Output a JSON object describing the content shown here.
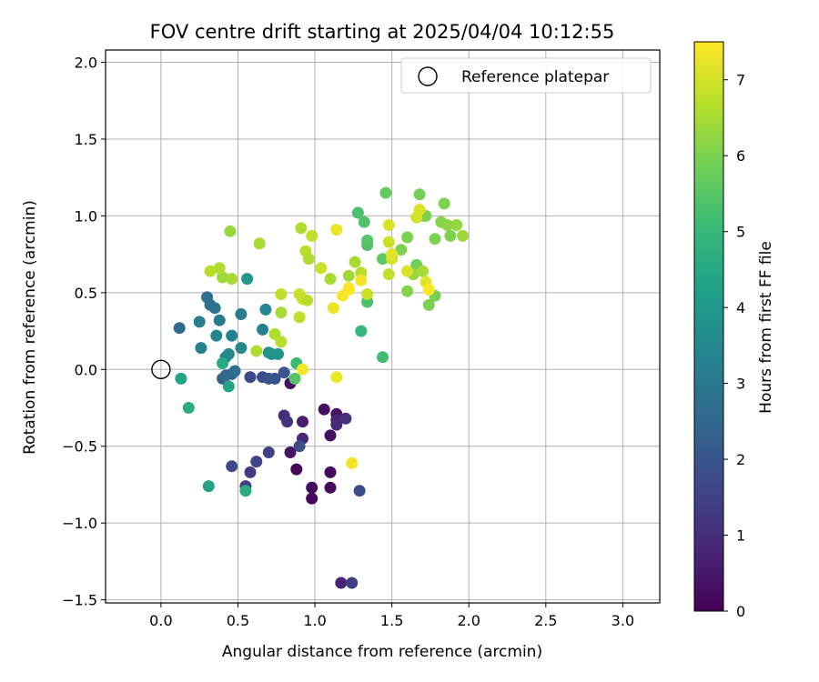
{
  "chart_data": {
    "type": "scatter",
    "title": "FOV centre drift starting at 2025/04/04 10:12:55",
    "xlabel": "Angular distance from reference (arcmin)",
    "ylabel": "Rotation from reference (arcmin)",
    "xlim": [
      -0.36,
      3.24
    ],
    "ylim": [
      -1.52,
      2.08
    ],
    "xticks": [
      "0.0",
      "0.5",
      "1.0",
      "1.5",
      "2.0",
      "2.5",
      "3.0"
    ],
    "xtick_values": [
      0,
      0.5,
      1.0,
      1.5,
      2.0,
      2.5,
      3.0
    ],
    "yticks": [
      "−1.5",
      "−1.0",
      "−0.5",
      "0.0",
      "0.5",
      "1.0",
      "1.5",
      "2.0"
    ],
    "ytick_values": [
      -1.5,
      -1.0,
      -0.5,
      0,
      0.5,
      1.0,
      1.5,
      2.0
    ],
    "grid": true,
    "legend": {
      "position": "top-right",
      "entries": [
        "Reference platepar"
      ]
    },
    "reference_point": {
      "x": 0.0,
      "y": 0.0,
      "style": "hollow-circle"
    },
    "colorbar": {
      "label": "Hours from first FF file",
      "colormap": "viridis",
      "range": [
        0,
        7.5
      ],
      "ticks": [
        "0",
        "1",
        "2",
        "3",
        "4",
        "5",
        "6",
        "7"
      ],
      "tick_values": [
        0,
        1,
        2,
        3,
        4,
        5,
        6,
        7
      ],
      "stops": [
        "#440154",
        "#482878",
        "#3e4989",
        "#31688e",
        "#26828e",
        "#1f9e89",
        "#35b779",
        "#6ece58",
        "#b5de2b",
        "#fde725"
      ]
    },
    "points": [
      [
        0.88,
        -0.65,
        0.1
      ],
      [
        0.98,
        -0.84,
        0.1
      ],
      [
        0.98,
        -0.77,
        0.2
      ],
      [
        1.1,
        -0.77,
        0.2
      ],
      [
        1.1,
        -0.67,
        0.2
      ],
      [
        1.1,
        -0.43,
        0.3
      ],
      [
        1.06,
        -0.26,
        0.3
      ],
      [
        1.14,
        -0.29,
        0.4
      ],
      [
        0.84,
        -0.09,
        0.3
      ],
      [
        0.84,
        -0.54,
        0.4
      ],
      [
        0.92,
        -0.34,
        0.6
      ],
      [
        0.92,
        -0.45,
        0.8
      ],
      [
        1.14,
        -0.33,
        0.8
      ],
      [
        1.14,
        -0.36,
        0.9
      ],
      [
        1.2,
        -0.32,
        1.0
      ],
      [
        1.17,
        -1.39,
        0.8
      ],
      [
        1.24,
        -1.39,
        1.4
      ],
      [
        0.8,
        -0.3,
        1.0
      ],
      [
        0.82,
        -0.34,
        1.1
      ],
      [
        0.58,
        -0.67,
        1.3
      ],
      [
        0.55,
        -0.76,
        1.4
      ],
      [
        0.7,
        -0.54,
        1.5
      ],
      [
        0.62,
        -0.6,
        1.6
      ],
      [
        0.46,
        -0.63,
        1.7
      ],
      [
        0.9,
        -0.5,
        1.8
      ],
      [
        1.29,
        -0.79,
        1.8
      ],
      [
        0.58,
        -0.05,
        1.7
      ],
      [
        0.66,
        -0.05,
        1.8
      ],
      [
        0.7,
        -0.06,
        1.9
      ],
      [
        0.74,
        -0.06,
        1.9
      ],
      [
        0.8,
        -0.02,
        2.0
      ],
      [
        0.4,
        -0.06,
        2.2
      ],
      [
        0.46,
        -0.03,
        2.4
      ],
      [
        0.42,
        -0.04,
        2.6
      ],
      [
        0.48,
        -0.01,
        2.7
      ],
      [
        0.12,
        0.27,
        2.6
      ],
      [
        0.3,
        0.47,
        2.7
      ],
      [
        0.32,
        0.42,
        2.8
      ],
      [
        0.35,
        0.4,
        2.9
      ],
      [
        0.38,
        0.32,
        3.0
      ],
      [
        0.25,
        0.31,
        3.2
      ],
      [
        0.26,
        0.14,
        3.3
      ],
      [
        0.36,
        0.22,
        3.4
      ],
      [
        0.42,
        0.08,
        3.4
      ],
      [
        0.44,
        0.1,
        3.5
      ],
      [
        0.46,
        0.22,
        3.3
      ],
      [
        0.52,
        0.14,
        3.5
      ],
      [
        0.52,
        0.36,
        3.1
      ],
      [
        0.66,
        0.26,
        3.3
      ],
      [
        0.68,
        0.39,
        3.5
      ],
      [
        0.56,
        0.59,
        4.0
      ],
      [
        0.7,
        0.11,
        3.7
      ],
      [
        0.72,
        0.1,
        3.8
      ],
      [
        0.76,
        0.1,
        3.9
      ],
      [
        0.4,
        0.04,
        4.5
      ],
      [
        0.44,
        -0.11,
        4.4
      ],
      [
        0.13,
        -0.06,
        4.3
      ],
      [
        0.18,
        -0.25,
        4.6
      ],
      [
        0.31,
        -0.76,
        4.3
      ],
      [
        0.55,
        -0.79,
        4.6
      ],
      [
        0.88,
        0.04,
        5.1
      ],
      [
        0.87,
        -0.06,
        5.5
      ],
      [
        1.3,
        0.25,
        5.0
      ],
      [
        1.44,
        0.08,
        5.2
      ],
      [
        1.34,
        0.44,
        5.3
      ],
      [
        1.28,
        1.02,
        5.3
      ],
      [
        1.32,
        0.96,
        5.4
      ],
      [
        1.34,
        0.81,
        5.4
      ],
      [
        1.34,
        0.84,
        5.5
      ],
      [
        1.44,
        0.72,
        5.6
      ],
      [
        1.46,
        1.15,
        5.7
      ],
      [
        1.5,
        0.74,
        5.8
      ],
      [
        1.56,
        0.78,
        6.0
      ],
      [
        1.6,
        0.86,
        6.0
      ],
      [
        1.66,
        0.68,
        5.8
      ],
      [
        1.68,
        1.14,
        5.9
      ],
      [
        1.7,
        1.0,
        6.0
      ],
      [
        1.72,
        1.0,
        6.0
      ],
      [
        1.78,
        0.85,
        6.0
      ],
      [
        1.78,
        0.48,
        5.9
      ],
      [
        1.84,
        1.08,
        6.0
      ],
      [
        1.82,
        0.96,
        6.1
      ],
      [
        1.86,
        0.94,
        6.2
      ],
      [
        1.88,
        0.87,
        6.0
      ],
      [
        1.92,
        0.94,
        6.3
      ],
      [
        1.96,
        0.87,
        6.4
      ],
      [
        1.6,
        0.51,
        6.1
      ],
      [
        1.64,
        0.62,
        6.3
      ],
      [
        1.7,
        0.64,
        6.5
      ],
      [
        1.74,
        0.42,
        6.0
      ],
      [
        0.45,
        0.9,
        6.3
      ],
      [
        0.4,
        0.6,
        6.4
      ],
      [
        0.46,
        0.59,
        6.5
      ],
      [
        0.38,
        0.66,
        6.6
      ],
      [
        0.32,
        0.64,
        6.7
      ],
      [
        0.64,
        0.82,
        6.5
      ],
      [
        0.62,
        0.12,
        6.6
      ],
      [
        0.74,
        0.23,
        6.6
      ],
      [
        0.78,
        0.18,
        6.7
      ],
      [
        0.78,
        0.37,
        6.5
      ],
      [
        0.78,
        0.49,
        6.8
      ],
      [
        0.9,
        0.49,
        6.9
      ],
      [
        0.92,
        0.46,
        6.9
      ],
      [
        0.9,
        0.34,
        6.8
      ],
      [
        0.95,
        0.45,
        6.7
      ],
      [
        0.91,
        0.92,
        6.6
      ],
      [
        0.94,
        0.77,
        6.7
      ],
      [
        0.96,
        0.72,
        6.6
      ],
      [
        0.98,
        0.87,
        6.8
      ],
      [
        1.04,
        0.66,
        6.9
      ],
      [
        1.1,
        0.59,
        6.5
      ],
      [
        1.22,
        0.61,
        6.4
      ],
      [
        1.26,
        0.7,
        6.5
      ],
      [
        1.3,
        0.63,
        6.7
      ],
      [
        1.34,
        0.49,
        6.9
      ],
      [
        1.48,
        0.62,
        6.8
      ],
      [
        1.48,
        0.83,
        6.9
      ],
      [
        1.5,
        0.72,
        7.0
      ],
      [
        1.48,
        0.94,
        7.1
      ],
      [
        1.6,
        0.64,
        7.1
      ],
      [
        1.66,
        0.99,
        7.0
      ],
      [
        1.68,
        1.04,
        7.1
      ],
      [
        1.72,
        0.57,
        7.2
      ],
      [
        0.92,
        0.0,
        7.4
      ],
      [
        1.12,
        0.4,
        7.3
      ],
      [
        1.18,
        0.48,
        7.4
      ],
      [
        1.22,
        0.53,
        7.4
      ],
      [
        1.22,
        0.52,
        7.5
      ],
      [
        1.3,
        0.58,
        7.4
      ],
      [
        1.14,
        0.91,
        7.3
      ],
      [
        1.14,
        -0.05,
        7.3
      ],
      [
        1.24,
        -0.61,
        7.4
      ],
      [
        1.74,
        0.52,
        7.5
      ],
      [
        1.5,
        0.75,
        7.2
      ]
    ]
  }
}
